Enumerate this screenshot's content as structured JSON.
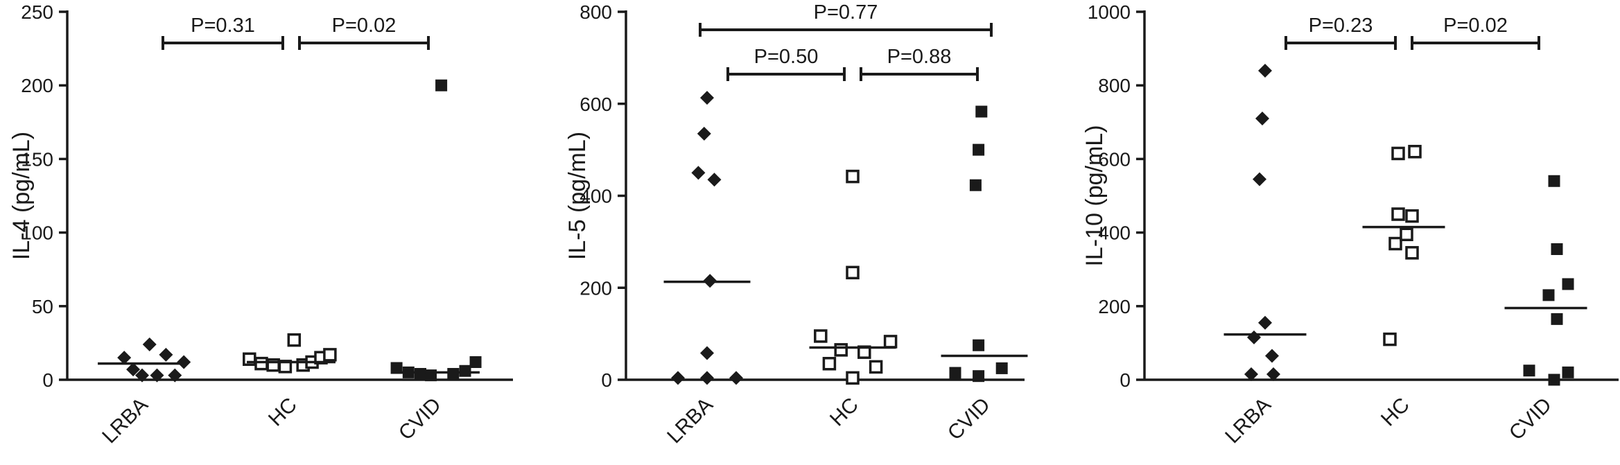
{
  "chart_data": [
    {
      "type": "scatter",
      "ylabel": "IL-4 (pg/mL)",
      "ylim": [
        0,
        250
      ],
      "yticks": [
        0,
        50,
        100,
        150,
        200,
        250
      ],
      "categories": [
        "LRBA",
        "HC",
        "CVID"
      ],
      "series": [
        {
          "category": "LRBA",
          "marker": "diamond",
          "median": 11,
          "points": [
            [
              -0.12,
              15
            ],
            [
              -0.06,
              7
            ],
            [
              0.0,
              3
            ],
            [
              0.05,
              24
            ],
            [
              0.1,
              3
            ],
            [
              0.16,
              17
            ],
            [
              0.22,
              3
            ],
            [
              0.28,
              12
            ]
          ]
        },
        {
          "category": "HC",
          "marker": "open-square",
          "median": 12,
          "points": [
            [
              -0.28,
              14
            ],
            [
              -0.2,
              11
            ],
            [
              -0.12,
              10
            ],
            [
              -0.04,
              9
            ],
            [
              0.02,
              27
            ],
            [
              0.08,
              10
            ],
            [
              0.14,
              12
            ],
            [
              0.2,
              15
            ],
            [
              0.26,
              17
            ]
          ]
        },
        {
          "category": "CVID",
          "marker": "filled-square",
          "median": 5,
          "points": [
            [
              -0.26,
              8
            ],
            [
              -0.18,
              5
            ],
            [
              -0.1,
              4
            ],
            [
              -0.03,
              3
            ],
            [
              0.04,
              200
            ],
            [
              0.12,
              4
            ],
            [
              0.2,
              6
            ],
            [
              0.27,
              12
            ]
          ]
        }
      ],
      "comparisons": [
        {
          "from": "LRBA",
          "to": "HC",
          "label": "P=0.31",
          "level": 0
        },
        {
          "from": "HC",
          "to": "CVID",
          "label": "P=0.02",
          "level": 0
        }
      ]
    },
    {
      "type": "scatter",
      "ylabel": "IL-5 (pg/mL)",
      "ylim": [
        0,
        800
      ],
      "yticks": [
        0,
        200,
        400,
        600,
        800
      ],
      "categories": [
        "LRBA",
        "HC",
        "CVID"
      ],
      "series": [
        {
          "category": "LRBA",
          "marker": "diamond",
          "median": 213,
          "points": [
            [
              -0.06,
              450
            ],
            [
              -0.02,
              535
            ],
            [
              0.0,
              613
            ],
            [
              0.02,
              215
            ],
            [
              0.0,
              58
            ],
            [
              0.05,
              435
            ],
            [
              -0.2,
              4
            ],
            [
              0.0,
              4
            ],
            [
              0.2,
              4
            ]
          ]
        },
        {
          "category": "HC",
          "marker": "open-square",
          "median": 70,
          "points": [
            [
              -0.22,
              95
            ],
            [
              -0.16,
              35
            ],
            [
              -0.08,
              65
            ],
            [
              0.0,
              233
            ],
            [
              0.0,
              442
            ],
            [
              0.0,
              4
            ],
            [
              0.08,
              60
            ],
            [
              0.16,
              28
            ],
            [
              0.26,
              83
            ]
          ]
        },
        {
          "category": "CVID",
          "marker": "filled-square",
          "median": 52,
          "points": [
            [
              -0.06,
              423
            ],
            [
              -0.04,
              500
            ],
            [
              -0.02,
              583
            ],
            [
              -0.04,
              75
            ],
            [
              -0.2,
              15
            ],
            [
              -0.04,
              8
            ],
            [
              0.12,
              25
            ]
          ]
        }
      ],
      "comparisons": [
        {
          "from": "LRBA",
          "to": "HC",
          "label": "P=0.50",
          "level": 0
        },
        {
          "from": "HC",
          "to": "CVID",
          "label": "P=0.88",
          "level": 0
        },
        {
          "from": "LRBA",
          "to": "CVID",
          "label": "P=0.77",
          "level": 1
        }
      ]
    },
    {
      "type": "scatter",
      "ylabel": "IL-10 (pg/mL)",
      "ylim": [
        0,
        1000
      ],
      "yticks": [
        0,
        200,
        400,
        600,
        800,
        1000
      ],
      "categories": [
        "LRBA",
        "HC",
        "CVID"
      ],
      "series": [
        {
          "category": "LRBA",
          "marker": "diamond",
          "median": 123,
          "points": [
            [
              0.0,
              840
            ],
            [
              -0.02,
              710
            ],
            [
              -0.04,
              545
            ],
            [
              0.0,
              155
            ],
            [
              -0.08,
              115
            ],
            [
              0.05,
              65
            ],
            [
              -0.1,
              15
            ],
            [
              0.06,
              15
            ]
          ]
        },
        {
          "category": "HC",
          "marker": "open-square",
          "median": 415,
          "points": [
            [
              -0.04,
              615
            ],
            [
              0.08,
              620
            ],
            [
              -0.04,
              450
            ],
            [
              0.06,
              445
            ],
            [
              -0.06,
              370
            ],
            [
              0.02,
              395
            ],
            [
              0.06,
              345
            ],
            [
              -0.1,
              110
            ]
          ]
        },
        {
          "category": "CVID",
          "marker": "filled-square",
          "median": 195,
          "points": [
            [
              0.06,
              540
            ],
            [
              0.08,
              355
            ],
            [
              0.16,
              260
            ],
            [
              0.02,
              230
            ],
            [
              0.08,
              165
            ],
            [
              -0.12,
              25
            ],
            [
              0.16,
              20
            ],
            [
              0.06,
              0
            ]
          ]
        }
      ],
      "comparisons": [
        {
          "from": "LRBA",
          "to": "HC",
          "label": "P=0.23",
          "level": 0
        },
        {
          "from": "HC",
          "to": "CVID",
          "label": "P=0.02",
          "level": 0
        }
      ]
    }
  ]
}
